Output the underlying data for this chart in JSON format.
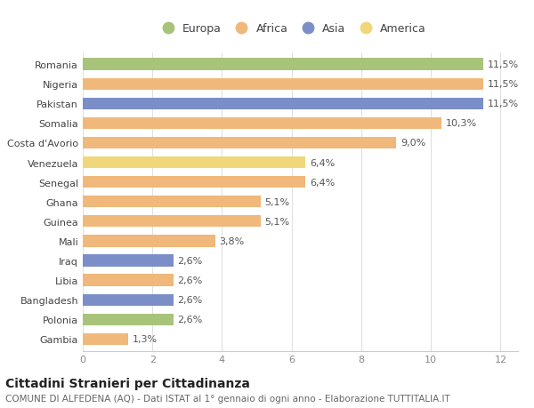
{
  "categories": [
    "Romania",
    "Nigeria",
    "Pakistan",
    "Somalia",
    "Costa d'Avorio",
    "Venezuela",
    "Senegal",
    "Ghana",
    "Guinea",
    "Mali",
    "Iraq",
    "Libia",
    "Bangladesh",
    "Polonia",
    "Gambia"
  ],
  "values": [
    11.5,
    11.5,
    11.5,
    10.3,
    9.0,
    6.4,
    6.4,
    5.1,
    5.1,
    3.8,
    2.6,
    2.6,
    2.6,
    2.6,
    1.3
  ],
  "labels": [
    "11,5%",
    "11,5%",
    "11,5%",
    "10,3%",
    "9,0%",
    "6,4%",
    "6,4%",
    "5,1%",
    "5,1%",
    "3,8%",
    "2,6%",
    "2,6%",
    "2,6%",
    "2,6%",
    "1,3%"
  ],
  "colors": [
    "#a8c47a",
    "#f0b87a",
    "#7b8ec8",
    "#f0b87a",
    "#f0b87a",
    "#f0d87a",
    "#f0b87a",
    "#f0b87a",
    "#f0b87a",
    "#f0b87a",
    "#7b8ec8",
    "#f0b87a",
    "#7b8ec8",
    "#a8c47a",
    "#f0b87a"
  ],
  "legend_labels": [
    "Europa",
    "Africa",
    "Asia",
    "America"
  ],
  "legend_colors": [
    "#a8c47a",
    "#f0b87a",
    "#7b8ec8",
    "#f0d87a"
  ],
  "title": "Cittadini Stranieri per Cittadinanza",
  "subtitle": "COMUNE DI ALFEDENA (AQ) - Dati ISTAT al 1° gennaio di ogni anno - Elaborazione TUTTITALIA.IT",
  "xlim": [
    0,
    12.5
  ],
  "xticks": [
    0,
    2,
    4,
    6,
    8,
    10,
    12
  ],
  "bg_color": "#ffffff",
  "plot_bg_color": "#ffffff",
  "grid_color": "#e0e0e0",
  "bar_height": 0.6,
  "label_fontsize": 8,
  "ytick_fontsize": 8,
  "xtick_fontsize": 8,
  "title_fontsize": 10,
  "subtitle_fontsize": 7.5,
  "legend_fontsize": 9
}
